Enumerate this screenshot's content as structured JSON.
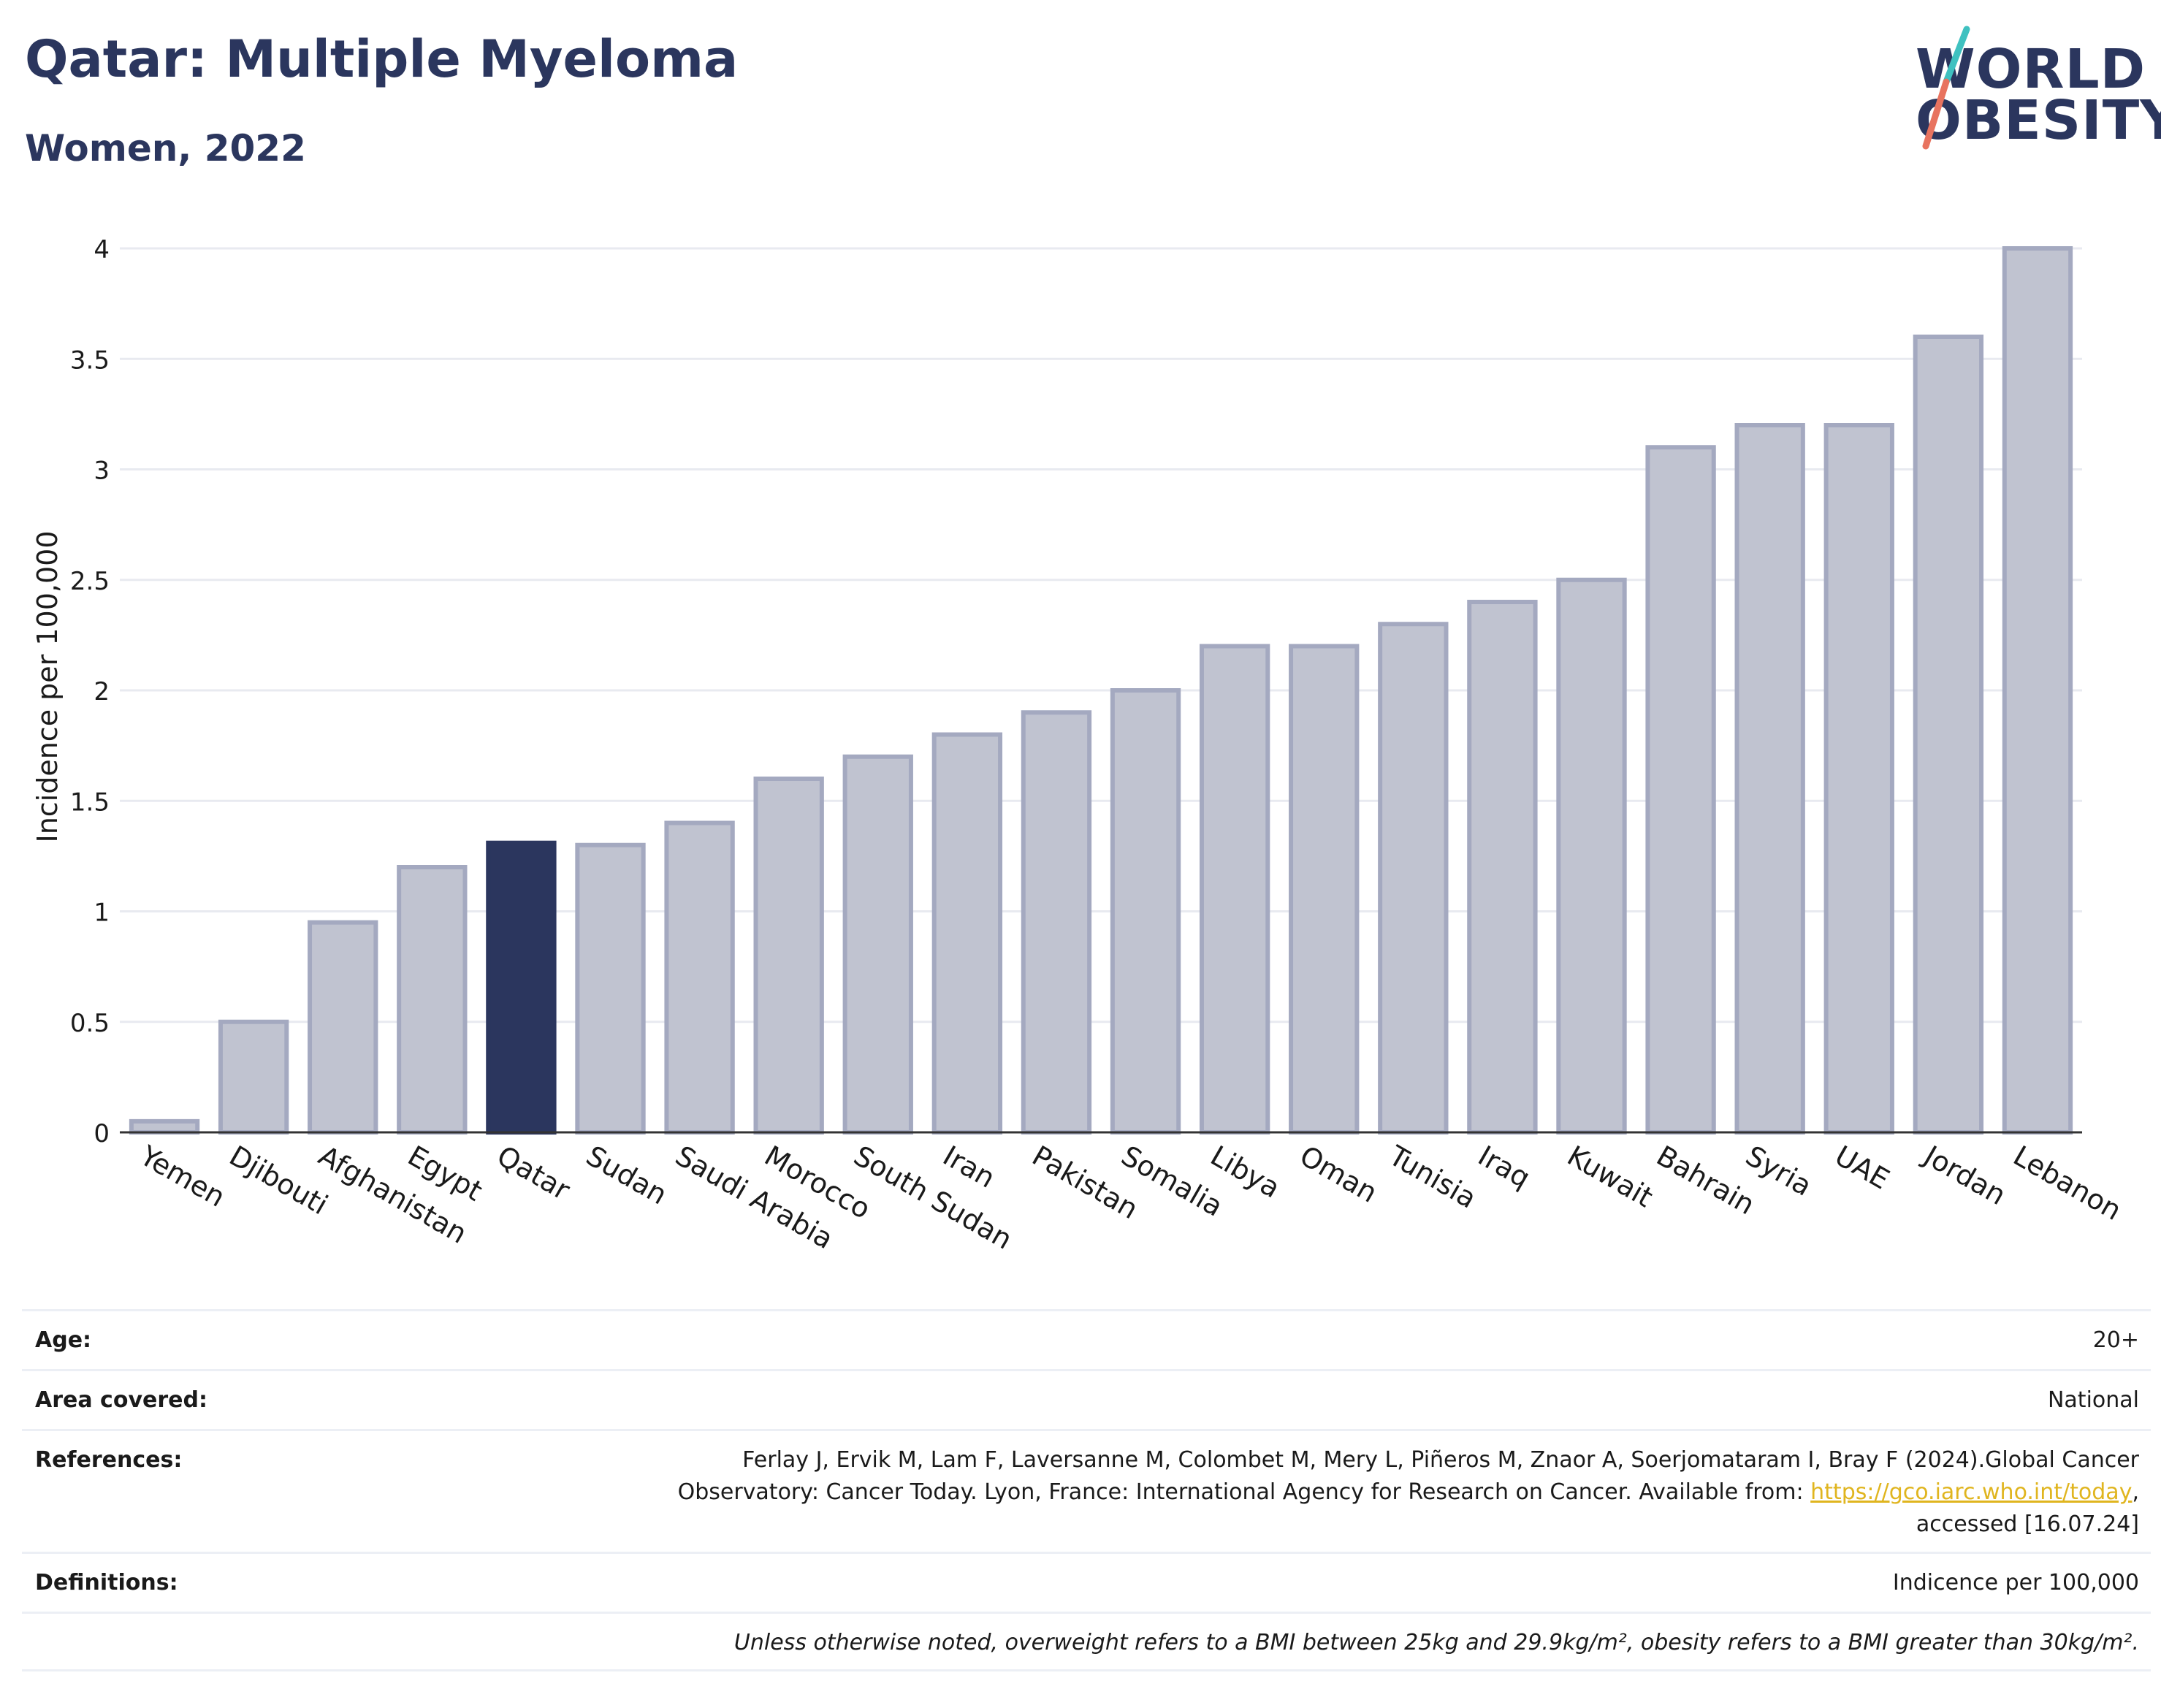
{
  "header": {
    "title": "Qatar: Multiple Myeloma",
    "subtitle": "Women, 2022"
  },
  "logo": {
    "line1": "WORLD",
    "line2": "OBESITY",
    "colors": {
      "text": "#2b365e",
      "slash_top": "#3fc1c0",
      "slash_bottom": "#e8735f"
    }
  },
  "chart_data": {
    "type": "bar",
    "ylabel": "Incidence per 100,000",
    "ylim": [
      0,
      4
    ],
    "yticks": [
      0,
      0.5,
      1,
      1.5,
      2,
      2.5,
      3,
      3.5,
      4
    ],
    "ytick_labels": [
      "0",
      "0.5",
      "1",
      "1.5",
      "2",
      "2.5",
      "3",
      "3.5",
      "4"
    ],
    "grid": true,
    "categories": [
      "Yemen",
      "Djibouti",
      "Afghanistan",
      "Egypt",
      "Qatar",
      "Sudan",
      "Saudi Arabia",
      "Morocco",
      "South Sudan",
      "Iran",
      "Pakistan",
      "Somalia",
      "Libya",
      "Oman",
      "Tunisia",
      "Iraq",
      "Kuwait",
      "Bahrain",
      "Syria",
      "UAE",
      "Jordan",
      "Lebanon"
    ],
    "values": [
      0.05,
      0.5,
      0.95,
      1.2,
      1.31,
      1.3,
      1.4,
      1.6,
      1.7,
      1.8,
      1.9,
      2.0,
      2.2,
      2.2,
      2.3,
      2.4,
      2.5,
      3.1,
      3.2,
      3.2,
      3.6,
      4.0
    ],
    "highlight": "Qatar",
    "colors": {
      "bar": "#c0c3d0",
      "bar_border": "#a4a9c0",
      "highlight": "#2b365e",
      "grid": "#e8eaf0",
      "axis": "#333333"
    }
  },
  "meta": {
    "age_label": "Age:",
    "age_value": "20+",
    "area_label": "Area covered:",
    "area_value": "National",
    "references_label": "References:",
    "references_text1": "Ferlay J, Ervik M, Lam F, Laversanne M, Colombet M, Mery L, Piñeros M, Znaor A, Soerjomataram I, Bray F (2024).Global Cancer",
    "references_text2": "Observatory: Cancer Today. Lyon, France: International Agency for Research on Cancer. Available from: ",
    "references_link": "https://gco.iarc.who.int/today",
    "references_text3": ",",
    "references_text4": "accessed [16.07.24]",
    "definitions_label": "Definitions:",
    "definitions_value": "Indicence per 100,000",
    "note": "Unless otherwise noted, overweight refers to a BMI between 25kg and 29.9kg/m², obesity refers to a BMI greater than 30kg/m²."
  }
}
